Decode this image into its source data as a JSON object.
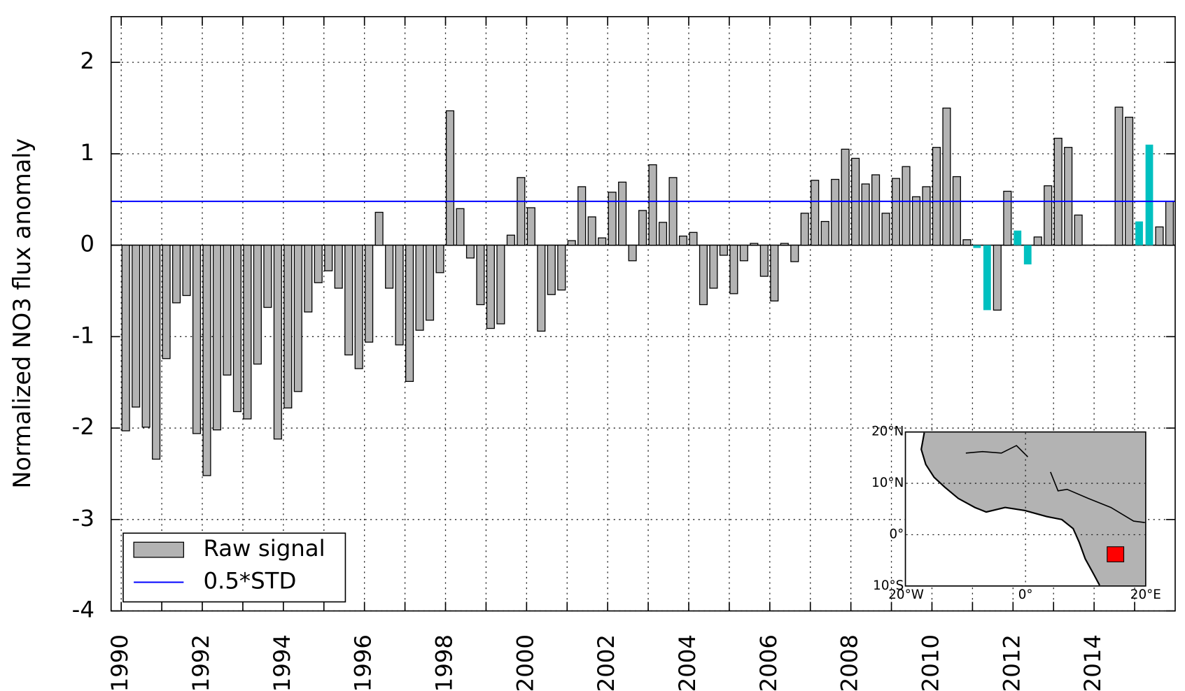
{
  "chart_data": {
    "type": "bar",
    "y_label": "Normalized NO3 flux anomaly",
    "x": [
      1990,
      1990.25,
      1990.5,
      1990.75,
      1991,
      1991.25,
      1991.5,
      1991.75,
      1992,
      1992.25,
      1992.5,
      1992.75,
      1993,
      1993.25,
      1993.5,
      1993.75,
      1994,
      1994.25,
      1994.5,
      1994.75,
      1995,
      1995.25,
      1995.5,
      1995.75,
      1996,
      1996.25,
      1996.5,
      1996.75,
      1997,
      1997.25,
      1997.5,
      1997.75,
      1998,
      1998.25,
      1998.5,
      1998.75,
      1999,
      1999.25,
      1999.5,
      1999.75,
      2000,
      2000.25,
      2000.5,
      2000.75,
      2001,
      2001.25,
      2001.5,
      2001.75,
      2002,
      2002.25,
      2002.5,
      2002.75,
      2003,
      2003.25,
      2003.5,
      2003.75,
      2004,
      2004.25,
      2004.5,
      2004.75,
      2005,
      2005.25,
      2005.5,
      2005.75,
      2006,
      2006.25,
      2006.5,
      2006.75,
      2007,
      2007.25,
      2007.5,
      2007.75,
      2008,
      2008.25,
      2008.5,
      2008.75,
      2009,
      2009.25,
      2009.5,
      2009.75,
      2010,
      2010.25,
      2010.5,
      2010.75,
      2011,
      2011.25,
      2011.5,
      2011.75,
      2012,
      2012.25,
      2012.5,
      2012.75,
      2013,
      2013.25,
      2013.5,
      2013.75,
      2014,
      2014.25,
      2014.5,
      2014.75,
      2015,
      2015.25,
      2015.5,
      2015.75
    ],
    "series": [
      {
        "name": "Raw signal",
        "color": "#b3b3b3",
        "values": [
          -2.03,
          -1.77,
          -1.99,
          -2.34,
          -1.24,
          -0.63,
          -0.55,
          -2.06,
          -2.52,
          -2.02,
          -1.42,
          -1.82,
          -1.9,
          -1.3,
          -0.68,
          -2.12,
          -1.78,
          -1.6,
          -0.73,
          -0.41,
          -0.28,
          -0.47,
          -1.2,
          -1.35,
          -1.06,
          0.36,
          -0.47,
          -1.09,
          -1.49,
          -0.93,
          -0.82,
          -0.3,
          1.47,
          0.4,
          -0.14,
          -0.65,
          -0.91,
          -0.86,
          0.11,
          0.74,
          0.41,
          -0.94,
          -0.54,
          -0.49,
          0.05,
          0.64,
          0.31,
          0.08,
          0.58,
          0.69,
          -0.17,
          0.38,
          0.88,
          0.25,
          0.74,
          0.1,
          0.14,
          -0.65,
          -0.47,
          -0.11,
          -0.53,
          -0.17,
          0.02,
          -0.34,
          -0.61,
          0.02,
          -0.18,
          0.35,
          0.71,
          0.26,
          0.72,
          1.05,
          0.95,
          0.67,
          0.77,
          0.35,
          0.73,
          0.86,
          0.53,
          0.64,
          1.07,
          1.5,
          0.75,
          0.06,
          null,
          null,
          -0.71,
          0.59,
          null,
          null,
          0.09,
          0.65,
          1.17,
          1.07,
          0.33,
          null,
          null,
          null,
          1.51,
          1.4,
          null,
          null,
          0.2,
          0.48
        ]
      },
      {
        "color": "#00c0c0",
        "values": [
          null,
          null,
          null,
          null,
          null,
          null,
          null,
          null,
          null,
          null,
          null,
          null,
          null,
          null,
          null,
          null,
          null,
          null,
          null,
          null,
          null,
          null,
          null,
          null,
          null,
          null,
          null,
          null,
          null,
          null,
          null,
          null,
          null,
          null,
          null,
          null,
          null,
          null,
          null,
          null,
          null,
          null,
          null,
          null,
          null,
          null,
          null,
          null,
          null,
          null,
          null,
          null,
          null,
          null,
          null,
          null,
          null,
          null,
          null,
          null,
          null,
          null,
          null,
          null,
          null,
          null,
          null,
          null,
          null,
          null,
          null,
          null,
          null,
          null,
          null,
          null,
          null,
          null,
          null,
          null,
          null,
          null,
          null,
          null,
          -0.03,
          -0.71,
          null,
          null,
          0.16,
          -0.21,
          null,
          null,
          null,
          null,
          null,
          null,
          null,
          null,
          null,
          null,
          0.26,
          1.1,
          null,
          null
        ]
      }
    ],
    "hline": {
      "name": "0.5*STD",
      "value": 0.48,
      "color": "#0000ff"
    },
    "xlim": [
      1989.75,
      2016
    ],
    "ylim": [
      -4,
      2.5
    ],
    "xticks": [
      1990,
      1992,
      1994,
      1996,
      1998,
      2000,
      2002,
      2004,
      2006,
      2008,
      2010,
      2012,
      2014
    ],
    "xminorticks": [
      1991,
      1993,
      1995,
      1997,
      1999,
      2001,
      2003,
      2005,
      2007,
      2009,
      2011,
      2013,
      2015
    ],
    "yticks": [
      -4,
      -3,
      -2,
      -1,
      0,
      1,
      2
    ],
    "grid": true,
    "legend": "lower left"
  },
  "inset_map": {
    "lat_labels": [
      "20°N",
      "10°N",
      "0°",
      "10°S"
    ],
    "lon_labels": [
      "20°W",
      "0°",
      "20°E"
    ]
  }
}
